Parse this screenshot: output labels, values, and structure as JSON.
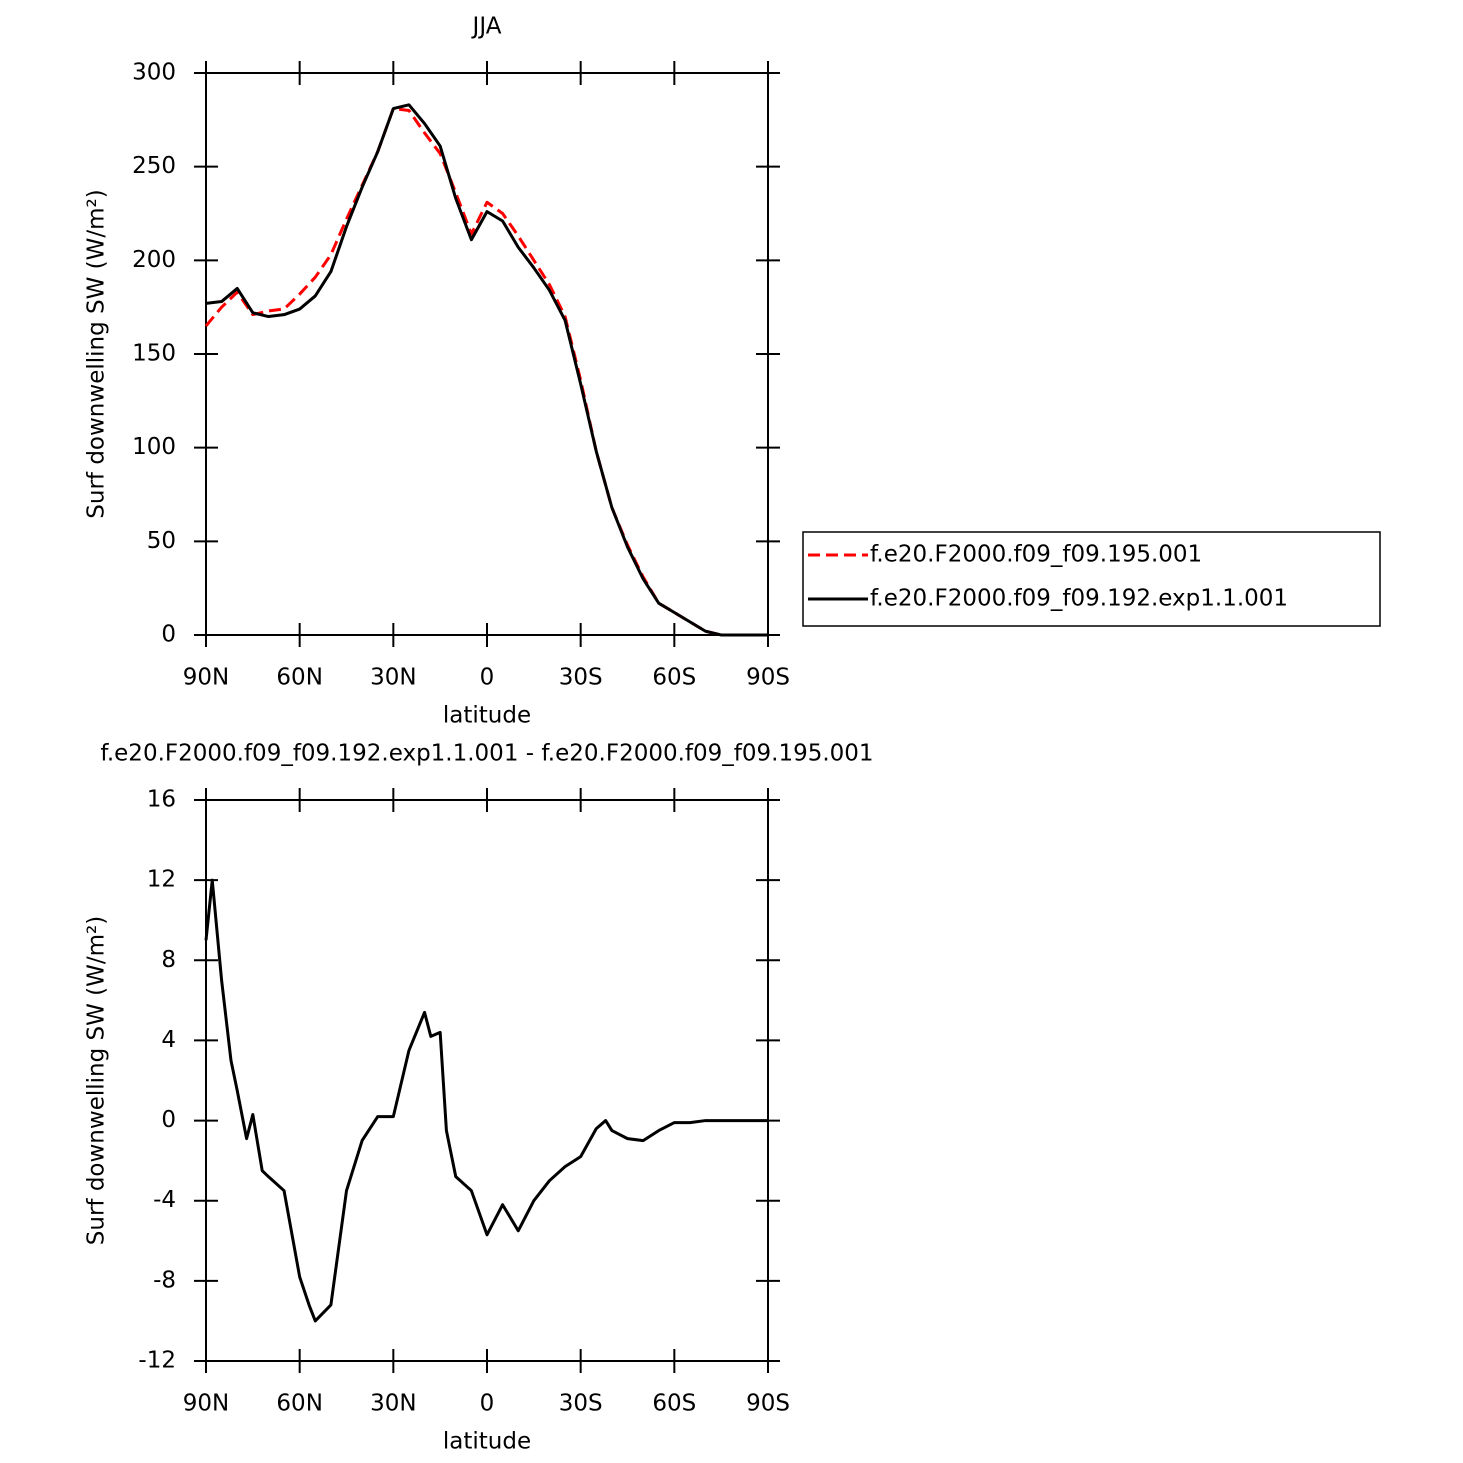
{
  "chart_data": [
    {
      "type": "line",
      "title": "JJA",
      "xlabel": "latitude",
      "ylabel": "Surf downwelling SW (W/m²)",
      "x": [
        90,
        85,
        80,
        75,
        70,
        65,
        60,
        55,
        50,
        45,
        40,
        35,
        30,
        25,
        20,
        15,
        10,
        5,
        0,
        -5,
        -10,
        -15,
        -20,
        -25,
        -30,
        -35,
        -40,
        -45,
        -50,
        -55,
        -60,
        -65,
        -70,
        -75,
        -80,
        -85,
        -90
      ],
      "series": [
        {
          "name": "f.e20.F2000.f09_f09.195.001",
          "color": "#ff0000",
          "dashed": true,
          "values": [
            165,
            175,
            183,
            171,
            173,
            174,
            182,
            191,
            203,
            222,
            240,
            258,
            281,
            280,
            268,
            257,
            236,
            214,
            231,
            225,
            213,
            200,
            187,
            170,
            136,
            98,
            68,
            48,
            31,
            17,
            12,
            7,
            2,
            0,
            0,
            0,
            0
          ]
        },
        {
          "name": "f.e20.F2000.f09_f09.192.exp1.1.001",
          "color": "#000000",
          "dashed": false,
          "values": [
            177,
            178,
            185,
            172,
            170,
            171,
            174,
            181,
            194,
            218,
            239,
            258,
            281,
            283,
            273,
            261,
            233,
            211,
            226,
            221,
            207,
            196,
            184,
            168,
            134,
            98,
            68,
            47,
            30,
            17,
            12,
            7,
            2,
            0,
            0,
            0,
            0
          ]
        }
      ],
      "xlim": [
        90,
        -90
      ],
      "xticks": [
        {
          "value": 90,
          "label": "90N"
        },
        {
          "value": 60,
          "label": "60N"
        },
        {
          "value": 30,
          "label": "30N"
        },
        0,
        {
          "value": -30,
          "label": "30S"
        },
        {
          "value": -60,
          "label": "60S"
        },
        {
          "value": -90,
          "label": "90S"
        }
      ],
      "ylim": [
        0,
        300
      ],
      "yticks": [
        0,
        50,
        100,
        150,
        200,
        250,
        300
      ],
      "grid": false,
      "legend": "right"
    },
    {
      "type": "line",
      "title": "f.e20.F2000.f09_f09.192.exp1.1.001 - f.e20.F2000.f09_f09.195.001",
      "xlabel": "latitude",
      "ylabel": "Surf downwelling SW (W/m²)",
      "x": [
        90,
        88,
        85,
        82,
        80,
        77,
        75,
        72,
        70,
        65,
        60,
        57,
        55,
        50,
        45,
        40,
        35,
        30,
        25,
        20,
        18,
        15,
        13,
        10,
        5,
        0,
        -5,
        -10,
        -15,
        -20,
        -25,
        -30,
        -35,
        -38,
        -40,
        -45,
        -50,
        -55,
        -60,
        -65,
        -70,
        -75,
        -80,
        -85,
        -90
      ],
      "series": [
        {
          "color": "#000000",
          "dashed": false,
          "values": [
            9,
            12,
            7,
            3,
            1.5,
            -0.9,
            0.3,
            -2.5,
            -2.8,
            -3.5,
            -7.8,
            -9.2,
            -10,
            -9.2,
            -3.5,
            -1,
            0.2,
            0.2,
            3.5,
            5.4,
            4.2,
            4.4,
            -0.5,
            -2.8,
            -3.5,
            -5.7,
            -4.2,
            -5.5,
            -4,
            -3,
            -2.3,
            -1.8,
            -0.4,
            0,
            -0.5,
            -0.9,
            -1,
            -0.5,
            -0.1,
            -0.1,
            0,
            0,
            0,
            0,
            0
          ]
        }
      ],
      "xlim": [
        90,
        -90
      ],
      "xticks": [
        {
          "value": 90,
          "label": "90N"
        },
        {
          "value": 60,
          "label": "60N"
        },
        {
          "value": 30,
          "label": "30N"
        },
        0,
        {
          "value": -30,
          "label": "30S"
        },
        {
          "value": -60,
          "label": "60S"
        },
        {
          "value": -90,
          "label": "90S"
        }
      ],
      "ylim": [
        -12,
        16
      ],
      "yticks": [
        -12,
        -8,
        -4,
        0,
        4,
        8,
        12,
        16
      ],
      "grid": false
    }
  ]
}
